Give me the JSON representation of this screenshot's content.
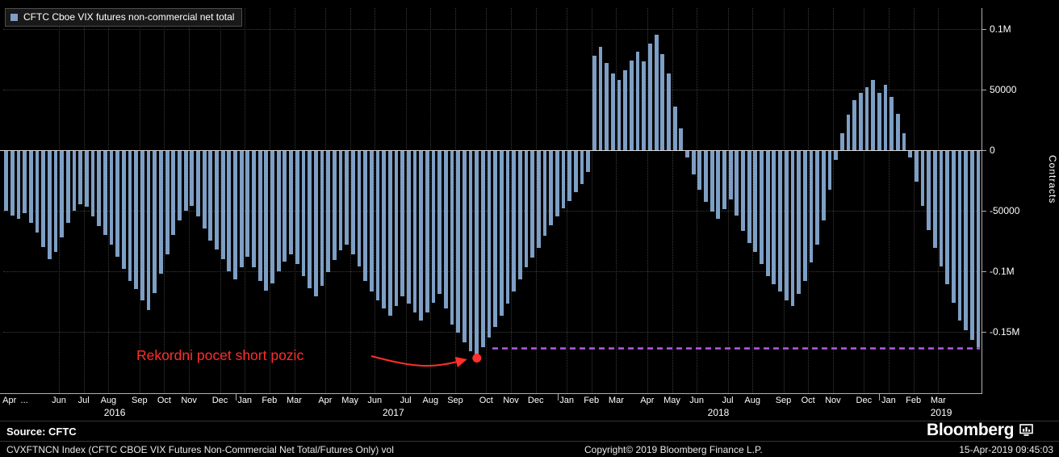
{
  "legend": {
    "label": "CFTC Cboe VIX futures non-commercial net total"
  },
  "footer": {
    "source_label": "Source: CFTC",
    "brand": "Bloomberg",
    "ticker_line": "CVXFTNCN Index (CFTC CBOE VIX Futures Non-Commercial Net Total/Futures Only) vol",
    "copyright": "Copyright© 2019 Bloomberg Finance L.P.",
    "timestamp": "15-Apr-2019 09:45:03"
  },
  "chart_data": {
    "type": "bar",
    "title": "CFTC Cboe VIX futures non-commercial net total",
    "ylabel": "Contracts",
    "frequency": "weekly",
    "x_range": "Apr 2016 to Apr 2019",
    "ylim": [
      -201000,
      117000
    ],
    "bar_color": "#7e9fc5",
    "grid": "dotted",
    "legend_position": "top-left",
    "y_ticks": [
      {
        "label": "0.1M",
        "value": 100000
      },
      {
        "label": "50000",
        "value": 50000
      },
      {
        "label": "0",
        "value": 0
      },
      {
        "label": "-50000",
        "value": -50000
      },
      {
        "label": "-0.1M",
        "value": -100000
      },
      {
        "label": "-0.15M",
        "value": -150000
      }
    ],
    "month_ticks": [
      {
        "label": "Apr",
        "week": 1,
        "grid": false
      },
      {
        "label": "...",
        "week": 3.4,
        "grid": false
      },
      {
        "label": "Jun",
        "week": 9,
        "grid": true
      },
      {
        "label": "Jul",
        "week": 13,
        "grid": true
      },
      {
        "label": "Aug",
        "week": 17,
        "grid": true
      },
      {
        "label": "Sep",
        "week": 22,
        "grid": true
      },
      {
        "label": "Oct",
        "week": 26,
        "grid": true
      },
      {
        "label": "Nov",
        "week": 30,
        "grid": true
      },
      {
        "label": "Dec",
        "week": 35,
        "grid": true
      },
      {
        "label": "Jan",
        "week": 39,
        "grid": true
      },
      {
        "label": "Feb",
        "week": 43,
        "grid": true
      },
      {
        "label": "Mar",
        "week": 47,
        "grid": true
      },
      {
        "label": "Apr",
        "week": 52,
        "grid": true
      },
      {
        "label": "May",
        "week": 56,
        "grid": true
      },
      {
        "label": "Jun",
        "week": 60,
        "grid": true
      },
      {
        "label": "Jul",
        "week": 65,
        "grid": true
      },
      {
        "label": "Aug",
        "week": 69,
        "grid": true
      },
      {
        "label": "Sep",
        "week": 73,
        "grid": true
      },
      {
        "label": "Oct",
        "week": 78,
        "grid": true
      },
      {
        "label": "Nov",
        "week": 82,
        "grid": true
      },
      {
        "label": "Dec",
        "week": 86,
        "grid": true
      },
      {
        "label": "Jan",
        "week": 91,
        "grid": true
      },
      {
        "label": "Feb",
        "week": 95,
        "grid": true
      },
      {
        "label": "Mar",
        "week": 99,
        "grid": true
      },
      {
        "label": "Apr",
        "week": 104,
        "grid": true
      },
      {
        "label": "May",
        "week": 108,
        "grid": true
      },
      {
        "label": "Jun",
        "week": 112,
        "grid": true
      },
      {
        "label": "Jul",
        "week": 117,
        "grid": true
      },
      {
        "label": "Aug",
        "week": 121,
        "grid": true
      },
      {
        "label": "Sep",
        "week": 126,
        "grid": true
      },
      {
        "label": "Oct",
        "week": 130,
        "grid": true
      },
      {
        "label": "Nov",
        "week": 134,
        "grid": true
      },
      {
        "label": "Dec",
        "week": 139,
        "grid": true
      },
      {
        "label": "Jan",
        "week": 143,
        "grid": true
      },
      {
        "label": "Feb",
        "week": 147,
        "grid": true
      },
      {
        "label": "Mar",
        "week": 151,
        "grid": true
      }
    ],
    "year_ticks": [
      {
        "label": "2016",
        "week": 18
      },
      {
        "label": "2017",
        "week": 63
      },
      {
        "label": "2018",
        "week": 115.5
      },
      {
        "label": "2019",
        "week": 151.5
      }
    ],
    "year_boundaries": [
      37.5,
      89.5,
      141.5
    ],
    "values": [
      -50000,
      -54000,
      -57000,
      -52000,
      -60000,
      -68000,
      -80000,
      -90000,
      -84000,
      -72000,
      -60000,
      -50000,
      -45000,
      -47000,
      -55000,
      -63000,
      -70000,
      -78000,
      -88000,
      -98000,
      -108000,
      -115000,
      -124000,
      -132000,
      -118000,
      -102000,
      -86000,
      -70000,
      -58000,
      -50000,
      -46000,
      -55000,
      -65000,
      -75000,
      -82000,
      -90000,
      -100000,
      -107000,
      -97000,
      -88000,
      -97000,
      -108000,
      -116000,
      -110000,
      -100000,
      -92000,
      -86000,
      -94000,
      -104000,
      -114000,
      -121000,
      -112000,
      -101000,
      -91000,
      -83000,
      -78000,
      -86000,
      -96000,
      -108000,
      -117000,
      -124000,
      -131000,
      -137000,
      -129000,
      -121000,
      -127000,
      -134000,
      -141000,
      -134000,
      -126000,
      -119000,
      -131000,
      -144000,
      -151000,
      -159000,
      -166000,
      -172000,
      -163000,
      -155000,
      -146000,
      -137000,
      -127000,
      -117000,
      -107000,
      -97000,
      -89000,
      -81000,
      -71000,
      -62000,
      -55000,
      -48000,
      -42000,
      -35000,
      -28000,
      -18000,
      78000,
      85000,
      72000,
      63000,
      58000,
      66000,
      74000,
      81000,
      73000,
      88000,
      95000,
      79000,
      63000,
      36000,
      18000,
      -6000,
      -20000,
      -33000,
      -43000,
      -51000,
      -57000,
      -49000,
      -41000,
      -54000,
      -67000,
      -77000,
      -84000,
      -94000,
      -104000,
      -111000,
      -117000,
      -124000,
      -129000,
      -119000,
      -108000,
      -93000,
      -78000,
      -58000,
      -33000,
      -8000,
      14000,
      29000,
      41000,
      47000,
      52000,
      58000,
      47000,
      54000,
      44000,
      30000,
      14000,
      -6000,
      -26000,
      -46000,
      -66000,
      -81000,
      -96000,
      -111000,
      -126000,
      -141000,
      -149000,
      -157000,
      -163000
    ],
    "annotations": {
      "record_label": {
        "text": "Rekordni pocet short pozic",
        "color": "#ff2f2b"
      },
      "record_point": {
        "week": 76,
        "value": -172000,
        "color": "#ff2f2b"
      },
      "dashed_level_line": {
        "value": -164000,
        "from_week": 79,
        "color": "#b45ce8",
        "style": "dashed"
      }
    }
  }
}
